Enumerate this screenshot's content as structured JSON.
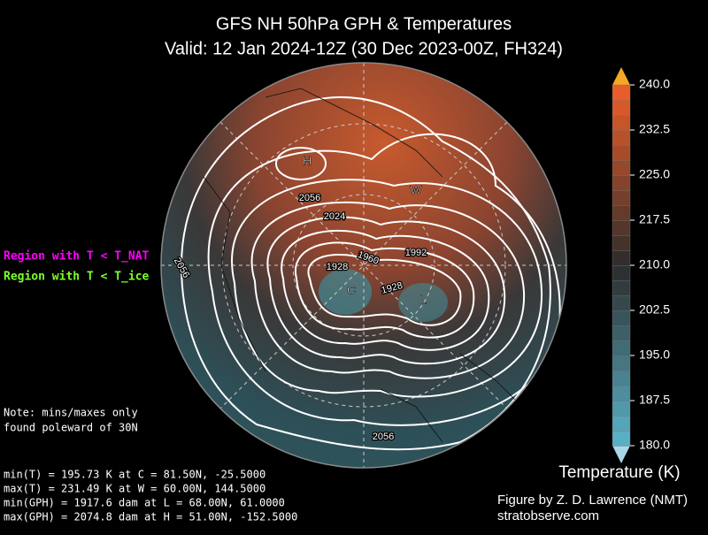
{
  "header": {
    "title": "GFS NH 50hPa GPH & Temperatures",
    "subtitle": "Valid: 12 Jan 2024-12Z  (30 Dec 2023-00Z, FH324)"
  },
  "legend": {
    "nat": "Region with T < T_NAT",
    "ice": "Region with T < T_ice"
  },
  "note": [
    "Note: mins/maxes only",
    "found poleward of 30N"
  ],
  "stats": [
    "min(T) = 195.73 K at C = 81.50N,  -25.5000",
    "max(T) = 231.49 K at W = 60.00N,  144.5000",
    "min(GPH) = 1917.6 dam at L = 68.00N,   61.0000",
    "max(GPH) = 2074.8 dam at H = 51.00N, -152.5000"
  ],
  "map": {
    "markers": [
      "H",
      "W",
      "C",
      "L"
    ],
    "contour_labels": [
      "2056",
      "2024",
      "1992",
      "1960",
      "1928",
      "1928",
      "2056",
      "2056"
    ]
  },
  "colorbar": {
    "label": "Temperature (K)",
    "lim": [
      180,
      240
    ],
    "ticks": [
      {
        "value": 180,
        "label": "180.0"
      },
      {
        "value": 187.5,
        "label": "187.5"
      },
      {
        "value": 195,
        "label": "195.0"
      },
      {
        "value": 202.5,
        "label": "202.5"
      },
      {
        "value": 210,
        "label": "210.0"
      },
      {
        "value": 217.5,
        "label": "217.5"
      },
      {
        "value": 225,
        "label": "225.0"
      },
      {
        "value": 232.5,
        "label": "232.5"
      },
      {
        "value": 240,
        "label": "240.0"
      }
    ]
  },
  "credit": [
    "Figure by Z. D. Lawrence (NMT)",
    "stratobserve.com"
  ]
}
